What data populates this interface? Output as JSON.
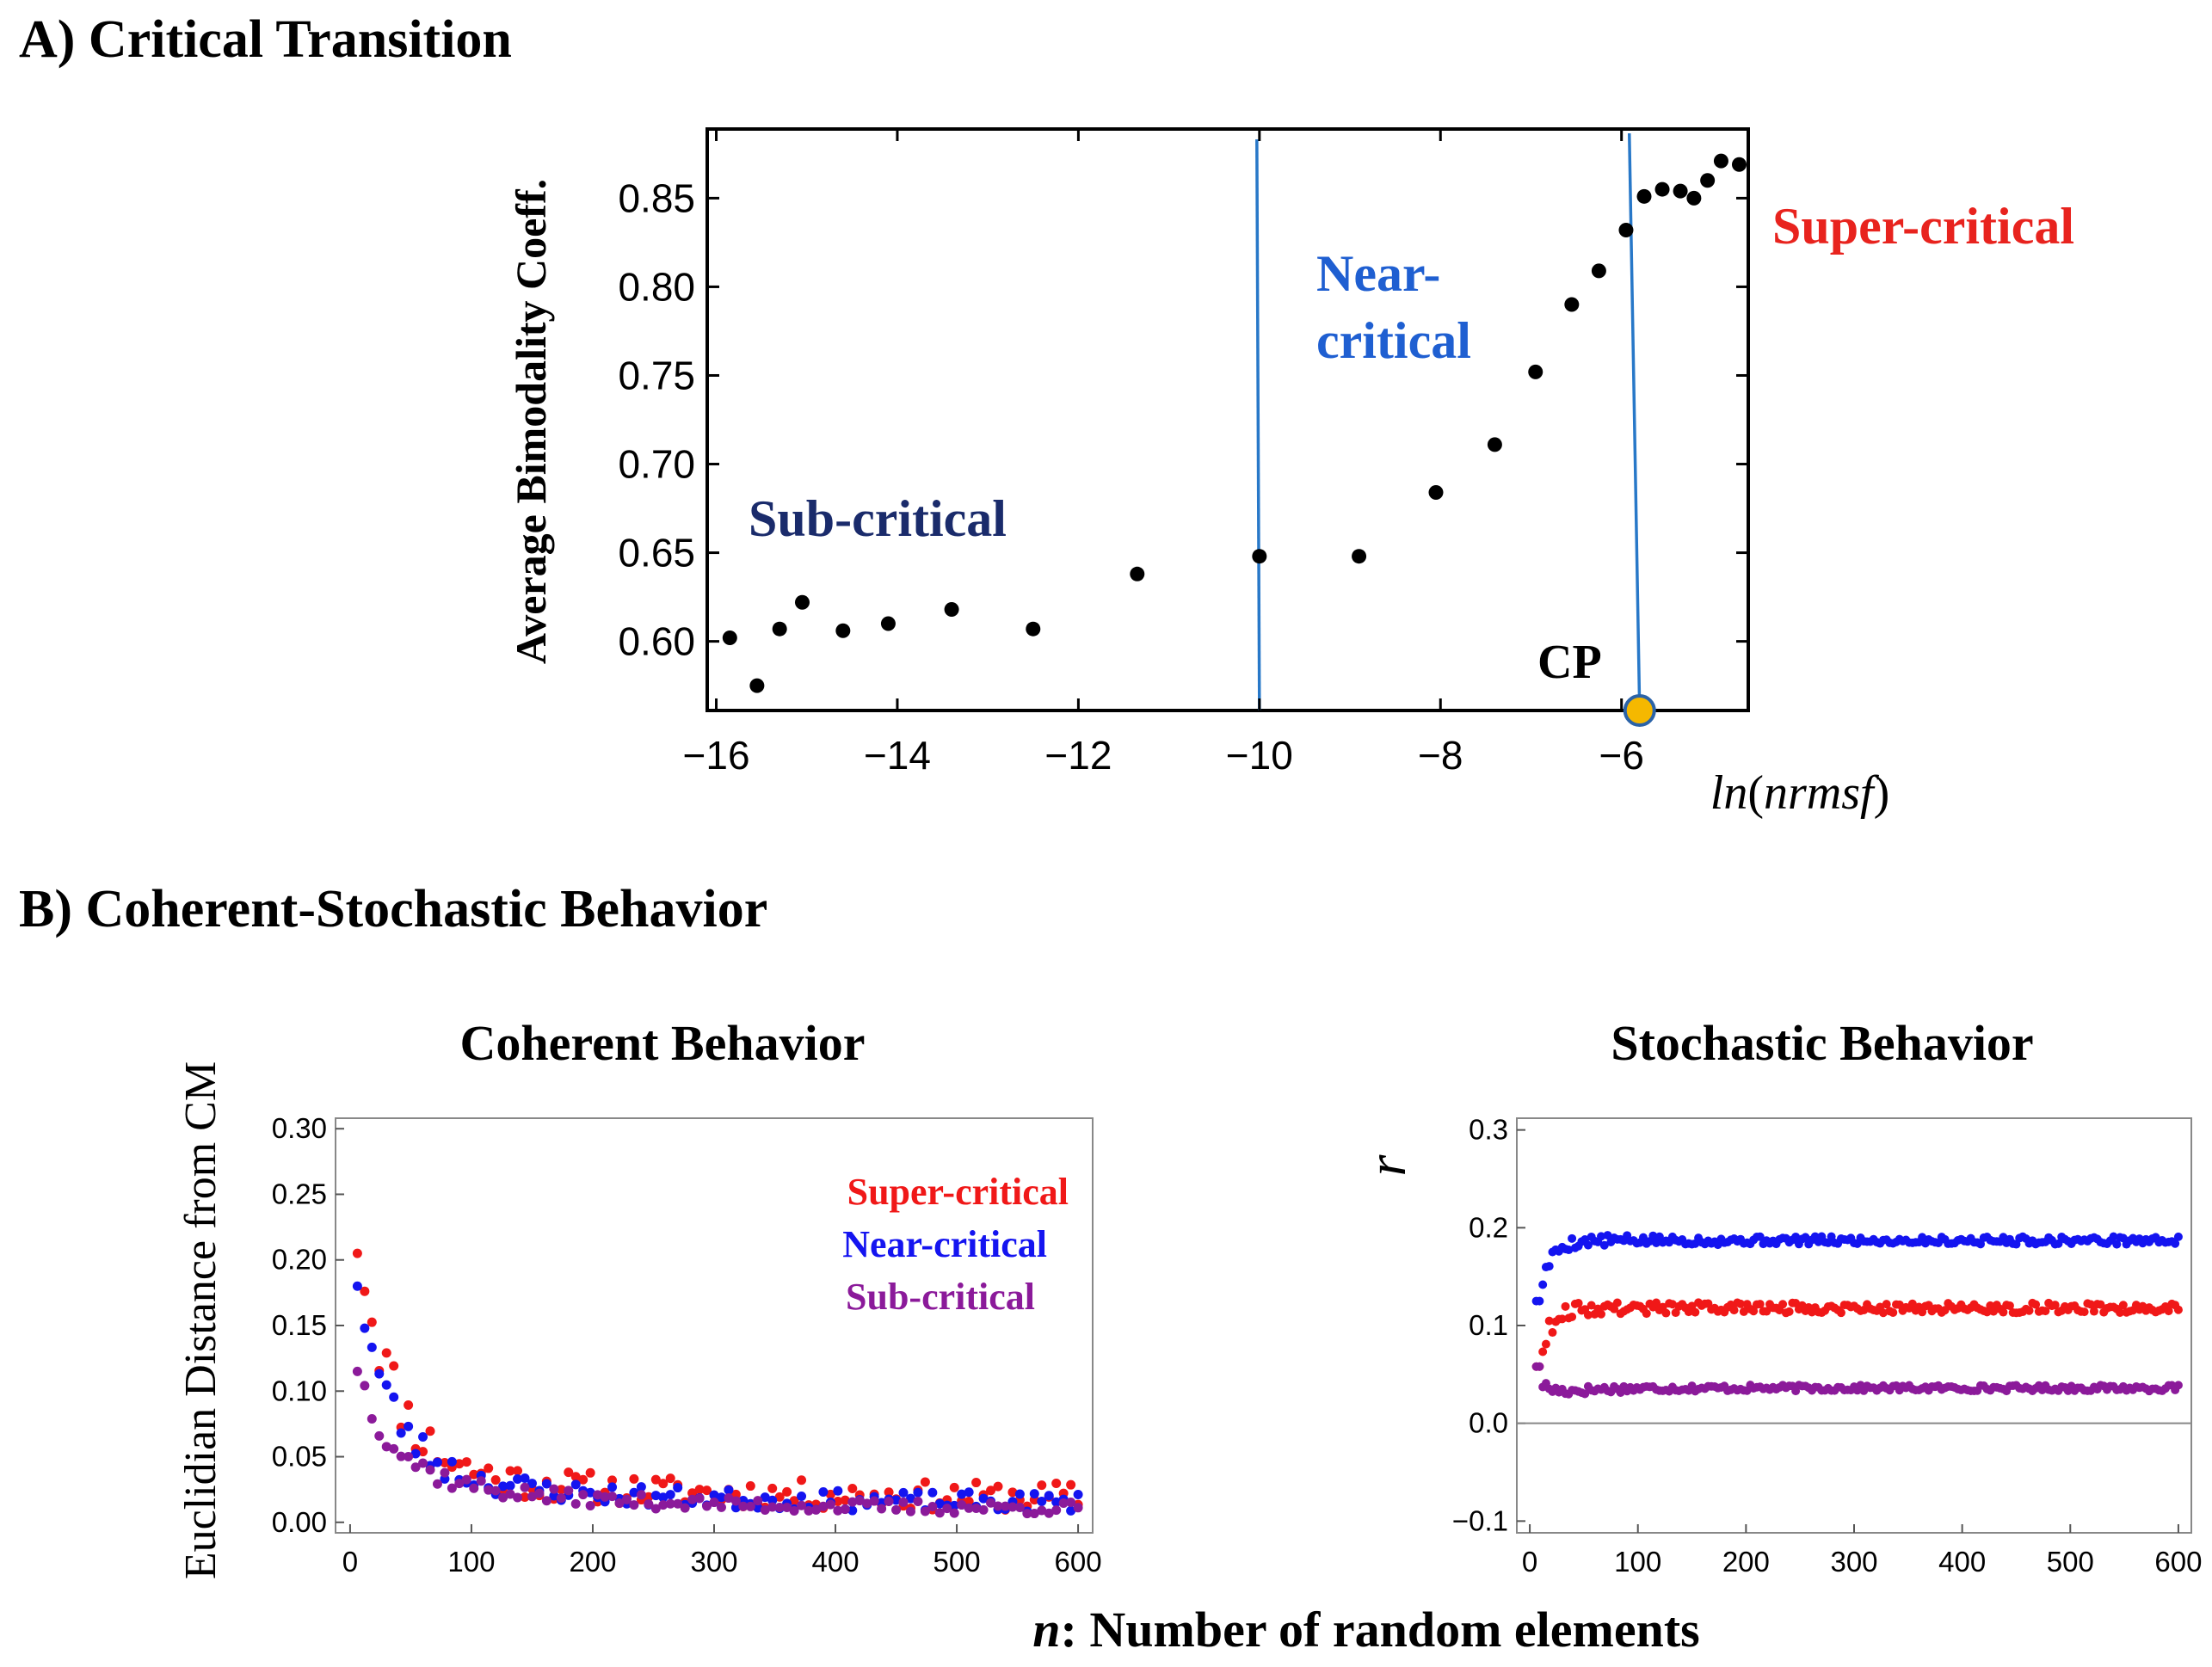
{
  "figure": {
    "panel_a_title": "A) Critical Transition",
    "panel_b_title": "B) Coherent-Stochastic Behavior",
    "shared_xlabel_prefix": "n",
    "shared_xlabel_rest": ": Number of random elements"
  },
  "chart_data": [
    {
      "id": "critical-transition",
      "type": "scatter",
      "title": "A) Critical Transition",
      "xlabel_parts": [
        "ln",
        "(",
        "nrmsf",
        ")"
      ],
      "ylabel": "Average Bimodality Coeff.",
      "xlim": [
        -16.1,
        -4.6
      ],
      "ylim": [
        0.561,
        0.889
      ],
      "xticks": [
        -16,
        -14,
        -12,
        -10,
        -8,
        -6
      ],
      "xtick_labels": [
        "−16",
        "−14",
        "−12",
        "−10",
        "−8",
        "−6"
      ],
      "yticks": [
        0.6,
        0.65,
        0.7,
        0.75,
        0.8,
        0.85
      ],
      "ytick_labels": [
        "0.60",
        "0.65",
        "0.70",
        "0.75",
        "0.80",
        "0.85"
      ],
      "x": [
        -15.85,
        -15.55,
        -15.3,
        -15.05,
        -14.6,
        -14.1,
        -13.4,
        -12.5,
        -11.35,
        -10.0,
        -8.9,
        -8.05,
        -7.4,
        -6.95,
        -6.55,
        -6.25,
        -5.95,
        -5.75,
        -5.55,
        -5.35,
        -5.2,
        -5.05,
        -4.9,
        -4.7
      ],
      "y": [
        0.602,
        0.575,
        0.607,
        0.622,
        0.606,
        0.61,
        0.618,
        0.607,
        0.638,
        0.648,
        0.648,
        0.684,
        0.711,
        0.752,
        0.79,
        0.809,
        0.832,
        0.851,
        0.855,
        0.854,
        0.85,
        0.86,
        0.871,
        0.869
      ],
      "vlines": [
        -10.0,
        -5.8
      ],
      "critical_point": {
        "label": "CP",
        "x": -5.8,
        "y": 0.561,
        "color": "#F5B800"
      },
      "regions": [
        {
          "label": "Sub-critical",
          "color": "#1A2B6B"
        },
        {
          "label": "Near-critical",
          "color": "#1F5FD1"
        },
        {
          "label": "Super-critical",
          "color": "#E8231E"
        }
      ],
      "colors": {
        "points": "#000000",
        "vline": "#2878C8"
      }
    },
    {
      "id": "coherent-behavior",
      "type": "scatter",
      "title": "Coherent Behavior",
      "xlabel": "",
      "ylabel": "Euclidian Distance from CM",
      "xlim": [
        -12,
        612
      ],
      "ylim": [
        -0.008,
        0.308
      ],
      "xticks": [
        0,
        100,
        200,
        300,
        400,
        500,
        600
      ],
      "xtick_labels": [
        "0",
        "100",
        "200",
        "300",
        "400",
        "500",
        "600"
      ],
      "yticks": [
        0.0,
        0.05,
        0.1,
        0.15,
        0.2,
        0.25,
        0.3
      ],
      "ytick_labels": [
        "0.00",
        "0.05",
        "0.10",
        "0.15",
        "0.20",
        "0.25",
        "0.30"
      ],
      "legend_placement": "top-right",
      "n_step": 6,
      "series": [
        {
          "name": "Super-critical",
          "color": "#F01818",
          "start": 0.205,
          "decay": 0.205,
          "floor": 0.018,
          "noise": 0.022,
          "seed": 11
        },
        {
          "name": "Near-critical",
          "color": "#1414F0",
          "start": 0.18,
          "decay": 0.16,
          "floor": 0.014,
          "noise": 0.015,
          "seed": 23
        },
        {
          "name": "Sub-critical",
          "color": "#8B1A9A",
          "start": 0.115,
          "decay": 0.09,
          "floor": 0.01,
          "noise": 0.01,
          "seed": 37
        }
      ]
    },
    {
      "id": "stochastic-behavior",
      "type": "scatter",
      "title": "Stochastic Behavior",
      "xlabel": "",
      "ylabel": "r",
      "xlim": [
        -12,
        612
      ],
      "ylim": [
        -0.112,
        0.312
      ],
      "xticks": [
        0,
        100,
        200,
        300,
        400,
        500,
        600
      ],
      "xtick_labels": [
        "0",
        "100",
        "200",
        "300",
        "400",
        "500",
        "600"
      ],
      "yticks": [
        -0.1,
        0.0,
        0.1,
        0.2,
        0.3
      ],
      "ytick_labels": [
        "−0.1",
        "0.0",
        "0.1",
        "0.2",
        "0.3"
      ],
      "zero_line": true,
      "n_step": 3,
      "series": [
        {
          "name": "Near-critical",
          "color": "#1414F0",
          "plateau": 0.187,
          "first": 0.125,
          "noise": 0.004,
          "seed": 5
        },
        {
          "name": "Super-critical",
          "color": "#F01818",
          "plateau": 0.118,
          "first": 0.058,
          "noise": 0.005,
          "seed": 9
        },
        {
          "name": "Sub-critical",
          "color": "#8B1A9A",
          "plateau": 0.036,
          "first": 0.058,
          "noise": 0.003,
          "seed": 17
        }
      ]
    }
  ]
}
